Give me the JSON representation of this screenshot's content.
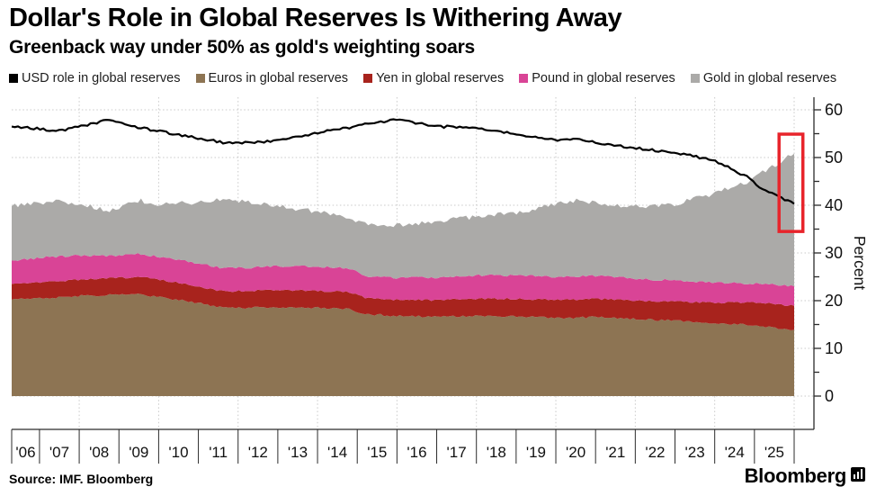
{
  "header": {
    "title": "Dollar's Role in Global Reserves Is Withering Away",
    "subtitle": "Greenback way under 50% as gold's weighting soars"
  },
  "legend": [
    {
      "key": "usd",
      "label": "USD role in global reserves",
      "color": "#000000"
    },
    {
      "key": "euros",
      "label": "Euros in global reserves",
      "color": "#8d7453"
    },
    {
      "key": "yen",
      "label": "Yen in global reserves",
      "color": "#a8231d"
    },
    {
      "key": "pound",
      "label": "Pound in global reserves",
      "color": "#d94496"
    },
    {
      "key": "gold",
      "label": "Gold in global reserves",
      "color": "#abaaa8"
    }
  ],
  "footer": {
    "source": "Source: IMF. Bloomberg",
    "brand": "Bloomberg"
  },
  "chart_data": {
    "type": "area",
    "subtype": "stacked-areas-with-line",
    "ylabel": "Percent",
    "ylim": [
      0,
      60
    ],
    "yticks": [
      0,
      10,
      20,
      30,
      40,
      50,
      60
    ],
    "ytick_minor_step": 5,
    "x_range": [
      2006.3,
      2026.0
    ],
    "x_tick_labels": [
      "'06",
      "'07",
      "'08",
      "'09",
      "'10",
      "'11",
      "'12",
      "'13",
      "'14",
      "'15",
      "'16",
      "'17",
      "'18",
      "'19",
      "'20",
      "'21",
      "'22",
      "'23",
      "'24",
      "'25"
    ],
    "grid_years": [
      2008,
      2010,
      2012,
      2014,
      2016,
      2018,
      2020,
      2022,
      2024,
      2026
    ],
    "grid_on": true,
    "legend_position": "top",
    "x": [
      2006.3,
      2007,
      2007.5,
      2008,
      2008.8,
      2009.5,
      2010,
      2011,
      2011.6,
      2012,
      2013,
      2014,
      2014.8,
      2015.2,
      2016,
      2017,
      2018,
      2019,
      2020,
      2020.5,
      2021,
      2022,
      2023,
      2024,
      2024.8,
      2025.2,
      2025.6,
      2026.0
    ],
    "series": [
      {
        "name": "USD role in global reserves",
        "render": "line",
        "color": "#000000",
        "values": [
          56.5,
          56.0,
          55.6,
          56.5,
          58.0,
          56.3,
          55.5,
          54.0,
          53.2,
          53.0,
          53.5,
          55.2,
          56.3,
          57.0,
          58.0,
          56.5,
          56.3,
          54.8,
          53.6,
          53.8,
          53.2,
          52.0,
          51.0,
          49.4,
          46.0,
          43.4,
          41.8,
          40.3
        ]
      },
      {
        "name": "Euros in global reserves",
        "render": "stacked-area",
        "color": "#8d7453",
        "values": [
          20.2,
          20.5,
          20.7,
          21.0,
          21.2,
          21.4,
          20.8,
          19.5,
          18.5,
          18.5,
          18.6,
          18.5,
          18.2,
          17.2,
          16.8,
          16.6,
          16.8,
          16.7,
          16.4,
          16.4,
          16.6,
          16.2,
          15.8,
          15.2,
          15.0,
          14.6,
          14.2,
          13.9
        ]
      },
      {
        "name": "Yen in global reserves",
        "render": "stacked-area",
        "color": "#a8231d",
        "values": [
          3.3,
          3.4,
          3.4,
          3.4,
          3.5,
          3.6,
          3.6,
          3.5,
          3.5,
          3.5,
          3.6,
          3.6,
          3.6,
          3.4,
          3.4,
          3.5,
          3.6,
          3.7,
          3.8,
          3.8,
          3.8,
          3.8,
          4.0,
          4.4,
          4.6,
          4.9,
          5.0,
          5.0
        ]
      },
      {
        "name": "Pound in global reserves",
        "render": "stacked-area",
        "color": "#d94496",
        "values": [
          4.9,
          5.1,
          5.2,
          5.0,
          4.7,
          4.8,
          4.8,
          4.8,
          4.8,
          4.9,
          5.0,
          5.0,
          4.9,
          4.6,
          4.6,
          4.8,
          4.9,
          4.9,
          4.8,
          4.8,
          4.8,
          4.6,
          4.4,
          4.2,
          4.0,
          4.1,
          4.1,
          4.1
        ]
      },
      {
        "name": "Gold in global reserves",
        "render": "stacked-area",
        "color": "#abaaa8",
        "values": [
          11.4,
          11.4,
          11.5,
          10.8,
          9.5,
          11.2,
          11.0,
          12.8,
          14.5,
          14.1,
          12.6,
          11.5,
          10.6,
          10.8,
          11.0,
          11.7,
          12.3,
          13.1,
          15.2,
          16.0,
          15.2,
          15.1,
          16.1,
          18.7,
          21.2,
          23.4,
          25.5,
          27.8
        ]
      }
    ],
    "annotation": {
      "type": "highlight-box",
      "color": "#e8242b",
      "x0": 2025.62,
      "x1": 2026.22,
      "y0": 34.5,
      "y1": 54.9
    },
    "axis_color": "#2b2b2b",
    "grid_color": "#c9c9c9",
    "tick_label_color": "#111111"
  }
}
